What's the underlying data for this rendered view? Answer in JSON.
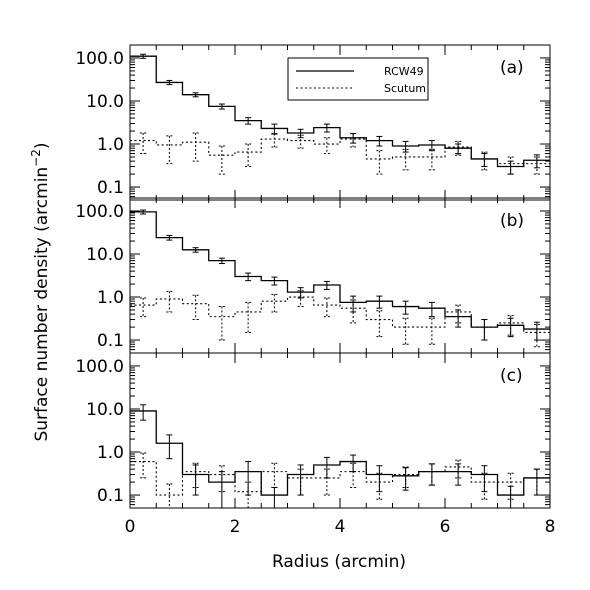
{
  "chart_data": {
    "type": "line",
    "ylabel": "Surface number density (arcmin^-2)",
    "ylabel_main": "Surface number density (arcmin",
    "ylabel_sup": "−2",
    "ylabel_close": ")",
    "xlabel": "Radius (arcmin)",
    "x_ticks": [
      "0",
      "2",
      "4",
      "6",
      "8"
    ],
    "xlim": [
      0,
      8
    ],
    "ylim": [
      0.05,
      200
    ],
    "y_scale": "log",
    "y_tick_labels": [
      "100.0",
      "10.0",
      "1.0",
      "0.1"
    ],
    "legend": [
      {
        "name": "RCW49",
        "style": "solid"
      },
      {
        "name": "Scutum",
        "style": "dotted"
      }
    ],
    "bin_edges": [
      0,
      0.5,
      1,
      1.5,
      2,
      2.5,
      3,
      3.5,
      4,
      4.5,
      5,
      5.5,
      6,
      6.5,
      7,
      7.5,
      8
    ],
    "panels": [
      {
        "label": "(a)",
        "series": [
          {
            "name": "RCW49",
            "style": "solid",
            "values": [
              110,
              27,
              14,
              7.5,
              3.5,
              2.3,
              1.8,
              2.4,
              1.4,
              1.2,
              0.9,
              0.95,
              0.8,
              0.45,
              0.3,
              0.42
            ],
            "errors": [
              12,
              3,
              1.5,
              1.0,
              0.6,
              0.6,
              0.4,
              0.5,
              0.35,
              0.3,
              0.25,
              0.25,
              0.2,
              0.15,
              0.1,
              0.14
            ]
          },
          {
            "name": "Scutum",
            "style": "dotted",
            "values": [
              1.2,
              0.95,
              1.1,
              0.55,
              0.65,
              1.3,
              1.2,
              1.0,
              1.3,
              0.45,
              0.5,
              0.5,
              0.85,
              0.45,
              0.35,
              0.35
            ],
            "errors": [
              0.6,
              0.6,
              0.7,
              0.35,
              0.35,
              0.45,
              0.4,
              0.4,
              0.45,
              0.25,
              0.25,
              0.25,
              0.3,
              0.2,
              0.15,
              0.15
            ]
          }
        ]
      },
      {
        "label": "(b)",
        "series": [
          {
            "name": "RCW49",
            "style": "solid",
            "values": [
              95,
              24,
              12.5,
              7,
              3.0,
              2.4,
              1.3,
              1.9,
              0.75,
              0.8,
              0.6,
              0.55,
              0.35,
              0.2,
              0.22,
              0.18
            ],
            "errors": [
              10,
              3,
              1.5,
              1.0,
              0.6,
              0.5,
              0.35,
              0.4,
              0.3,
              0.25,
              0.2,
              0.2,
              0.15,
              0.1,
              0.1,
              0.08
            ]
          },
          {
            "name": "Scutum",
            "style": "dotted",
            "values": [
              0.65,
              0.9,
              0.7,
              0.35,
              0.45,
              0.8,
              1.0,
              0.65,
              0.55,
              0.3,
              0.2,
              0.2,
              0.45,
              0.2,
              0.25,
              0.15
            ],
            "errors": [
              0.3,
              0.45,
              0.4,
              0.25,
              0.3,
              0.35,
              0.4,
              0.3,
              0.3,
              0.18,
              0.12,
              0.12,
              0.2,
              0.1,
              0.12,
              0.08
            ]
          }
        ]
      },
      {
        "label": "(c)",
        "series": [
          {
            "name": "RCW49",
            "style": "solid",
            "values": [
              9,
              1.6,
              0.3,
              0.2,
              0.35,
              0.1,
              0.3,
              0.5,
              0.6,
              0.3,
              0.28,
              0.35,
              0.35,
              0.3,
              0.1,
              0.25
            ],
            "errors": [
              3.5,
              0.9,
              0.2,
              0.15,
              0.25,
              0.05,
              0.2,
              0.25,
              0.25,
              0.18,
              0.15,
              0.18,
              0.18,
              0.18,
              0.06,
              0.15
            ]
          },
          {
            "name": "Scutum",
            "style": "dotted",
            "values": [
              0.6,
              0.1,
              0.35,
              0.3,
              0.12,
              0.35,
              0.25,
              0.25,
              0.35,
              0.2,
              0.3,
              0.35,
              0.45,
              0.2,
              0.2,
              0.25
            ],
            "errors": [
              0.35,
              0.08,
              0.2,
              0.18,
              0.08,
              0.2,
              0.15,
              0.15,
              0.2,
              0.12,
              0.15,
              0.18,
              0.2,
              0.12,
              0.12,
              0.15
            ]
          }
        ]
      }
    ]
  }
}
